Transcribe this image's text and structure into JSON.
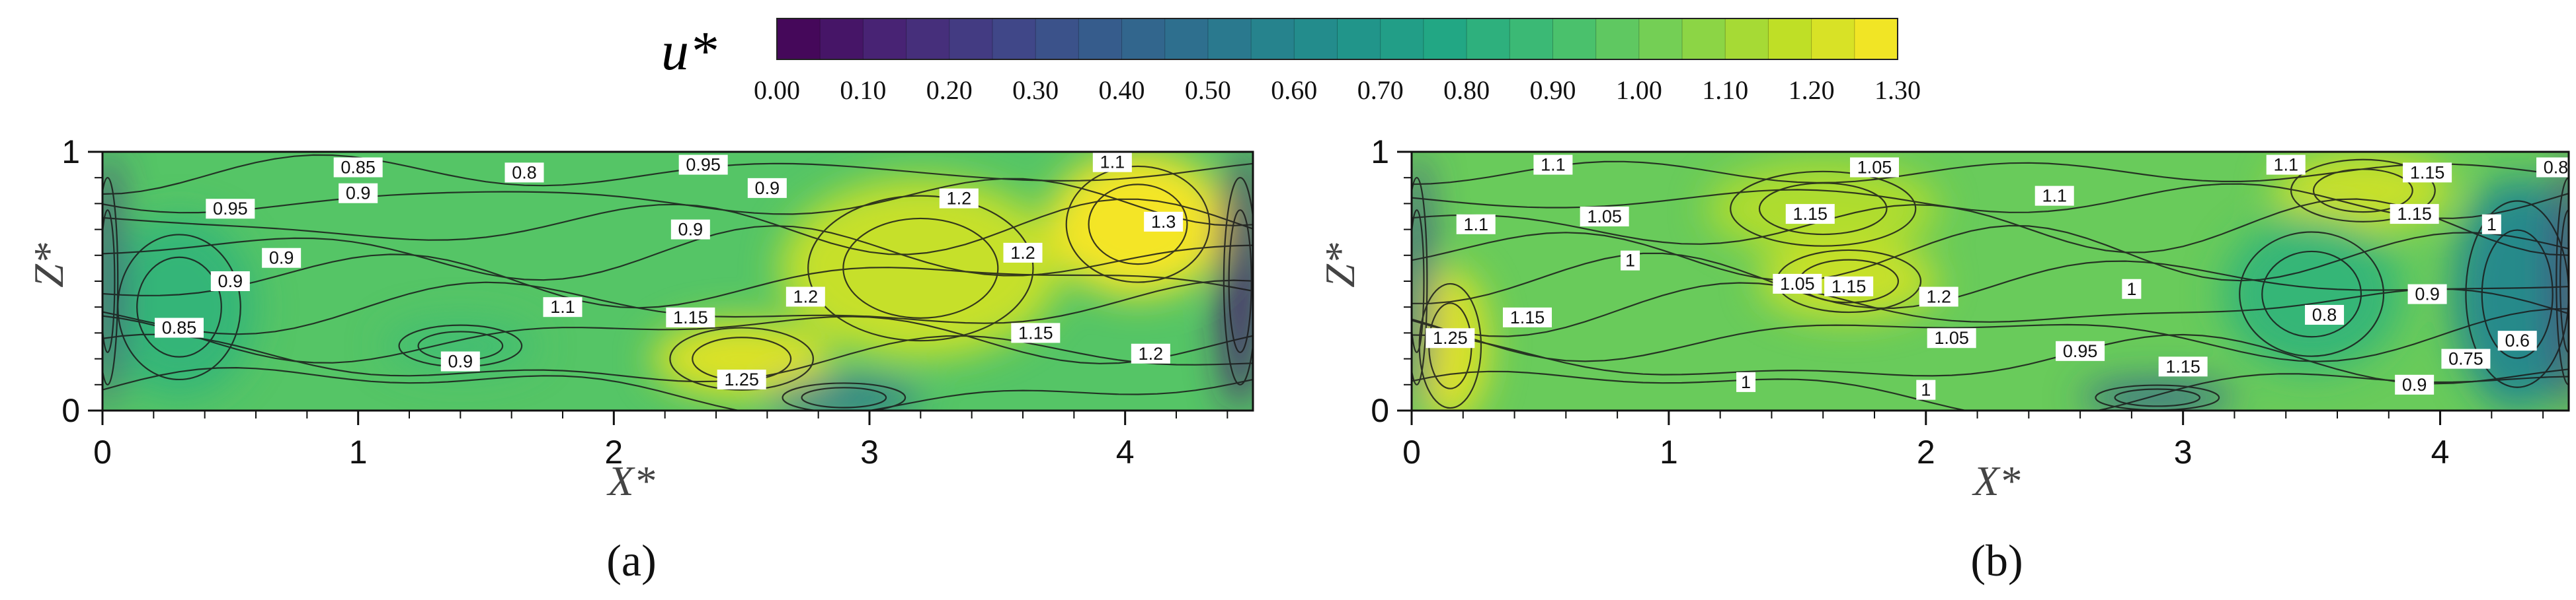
{
  "colorbar": {
    "label": "u*",
    "ticks": [
      "0.00",
      "0.10",
      "0.20",
      "0.30",
      "0.40",
      "0.50",
      "0.60",
      "0.70",
      "0.80",
      "0.90",
      "1.00",
      "1.10",
      "1.20",
      "1.30"
    ],
    "min": 0.0,
    "max": 1.3,
    "levels": 26,
    "colors": [
      "#440154",
      "#482475",
      "#414487",
      "#355f8d",
      "#2a788e",
      "#21918c",
      "#22a884",
      "#44bf70",
      "#7ad151",
      "#bddf26",
      "#fde725"
    ]
  },
  "chart_data": [
    {
      "type": "heatmap",
      "panel_label": "(a)",
      "xlabel": "X*",
      "ylabel": "Z*",
      "xlim": [
        0,
        4.5
      ],
      "ylim": [
        0,
        1
      ],
      "xticks": [
        "0",
        "1",
        "2",
        "3",
        "4"
      ],
      "yticks": [
        "0",
        "1"
      ],
      "base_value": 0.95,
      "blobs": [
        {
          "x": 4.05,
          "z": 0.72,
          "rx": 0.35,
          "rz": 0.28,
          "value": 1.3
        },
        {
          "x": 3.2,
          "z": 0.55,
          "rx": 0.55,
          "rz": 0.35,
          "value": 1.2
        },
        {
          "x": 2.5,
          "z": 0.2,
          "rx": 0.35,
          "rz": 0.15,
          "value": 1.25
        },
        {
          "x": 1.4,
          "z": 0.25,
          "rx": 0.3,
          "rz": 0.1,
          "value": 0.9
        },
        {
          "x": 0.3,
          "z": 0.4,
          "rx": 0.3,
          "rz": 0.35,
          "value": 0.85
        },
        {
          "x": 4.45,
          "z": 0.5,
          "rx": 0.08,
          "rz": 0.5,
          "value": 0.1
        },
        {
          "x": 0.02,
          "z": 0.5,
          "rx": 0.05,
          "rz": 0.5,
          "value": 0.2
        },
        {
          "x": 2.9,
          "z": 0.05,
          "rx": 0.3,
          "rz": 0.07,
          "value": 0.5
        }
      ],
      "contour_labels": [
        {
          "x": 1.0,
          "z": 0.94,
          "text": "0.85"
        },
        {
          "x": 1.65,
          "z": 0.92,
          "text": "0.8"
        },
        {
          "x": 2.35,
          "z": 0.95,
          "text": "0.95"
        },
        {
          "x": 2.6,
          "z": 0.86,
          "text": "0.9"
        },
        {
          "x": 1.0,
          "z": 0.84,
          "text": "0.9"
        },
        {
          "x": 0.5,
          "z": 0.78,
          "text": "0.95"
        },
        {
          "x": 2.3,
          "z": 0.7,
          "text": "0.9"
        },
        {
          "x": 0.7,
          "z": 0.59,
          "text": "0.9"
        },
        {
          "x": 0.5,
          "z": 0.5,
          "text": "0.9"
        },
        {
          "x": 0.3,
          "z": 0.32,
          "text": "0.85"
        },
        {
          "x": 1.8,
          "z": 0.4,
          "text": "1.1"
        },
        {
          "x": 3.95,
          "z": 0.96,
          "text": "1.1"
        },
        {
          "x": 3.35,
          "z": 0.82,
          "text": "1.2"
        },
        {
          "x": 4.15,
          "z": 0.73,
          "text": "1.3"
        },
        {
          "x": 3.6,
          "z": 0.61,
          "text": "1.2"
        },
        {
          "x": 2.75,
          "z": 0.44,
          "text": "1.2"
        },
        {
          "x": 2.3,
          "z": 0.36,
          "text": "1.15"
        },
        {
          "x": 3.65,
          "z": 0.3,
          "text": "1.15"
        },
        {
          "x": 1.4,
          "z": 0.19,
          "text": "0.9"
        },
        {
          "x": 2.5,
          "z": 0.12,
          "text": "1.25"
        },
        {
          "x": 4.1,
          "z": 0.22,
          "text": "1.2"
        }
      ]
    },
    {
      "type": "heatmap",
      "panel_label": "(b)",
      "xlabel": "X*",
      "ylabel": "Z*",
      "xlim": [
        0,
        4.5
      ],
      "ylim": [
        0,
        1
      ],
      "xticks": [
        "0",
        "1",
        "2",
        "3",
        "4"
      ],
      "yticks": [
        "0",
        "1"
      ],
      "base_value": 1.0,
      "blobs": [
        {
          "x": 1.6,
          "z": 0.78,
          "rx": 0.45,
          "rz": 0.18,
          "value": 1.15
        },
        {
          "x": 1.7,
          "z": 0.5,
          "rx": 0.35,
          "rz": 0.15,
          "value": 1.2
        },
        {
          "x": 3.7,
          "z": 0.85,
          "rx": 0.35,
          "rz": 0.15,
          "value": 1.2
        },
        {
          "x": 0.15,
          "z": 0.25,
          "rx": 0.15,
          "rz": 0.3,
          "value": 1.25
        },
        {
          "x": 3.5,
          "z": 0.45,
          "rx": 0.35,
          "rz": 0.3,
          "value": 0.85
        },
        {
          "x": 4.3,
          "z": 0.45,
          "rx": 0.25,
          "rz": 0.45,
          "value": 0.6
        },
        {
          "x": 4.5,
          "z": 0.5,
          "rx": 0.06,
          "rz": 0.5,
          "value": 0.2
        },
        {
          "x": 0.02,
          "z": 0.5,
          "rx": 0.05,
          "rz": 0.5,
          "value": 0.3
        },
        {
          "x": 2.9,
          "z": 0.05,
          "rx": 0.3,
          "rz": 0.06,
          "value": 0.4
        }
      ],
      "contour_labels": [
        {
          "x": 0.55,
          "z": 0.95,
          "text": "1.1"
        },
        {
          "x": 1.8,
          "z": 0.94,
          "text": "1.05"
        },
        {
          "x": 3.4,
          "z": 0.95,
          "text": "1.1"
        },
        {
          "x": 3.95,
          "z": 0.92,
          "text": "1.15"
        },
        {
          "x": 4.45,
          "z": 0.94,
          "text": "0.8"
        },
        {
          "x": 0.25,
          "z": 0.72,
          "text": "1.1"
        },
        {
          "x": 0.75,
          "z": 0.75,
          "text": "1.05"
        },
        {
          "x": 1.55,
          "z": 0.76,
          "text": "1.15"
        },
        {
          "x": 2.5,
          "z": 0.83,
          "text": "1.1"
        },
        {
          "x": 3.9,
          "z": 0.76,
          "text": "1.15"
        },
        {
          "x": 4.2,
          "z": 0.72,
          "text": "1"
        },
        {
          "x": 0.85,
          "z": 0.58,
          "text": "1"
        },
        {
          "x": 1.5,
          "z": 0.49,
          "text": "1.05"
        },
        {
          "x": 1.7,
          "z": 0.48,
          "text": "1.15"
        },
        {
          "x": 2.05,
          "z": 0.44,
          "text": "1.2"
        },
        {
          "x": 2.8,
          "z": 0.47,
          "text": "1"
        },
        {
          "x": 3.55,
          "z": 0.37,
          "text": "0.8"
        },
        {
          "x": 3.95,
          "z": 0.45,
          "text": "0.9"
        },
        {
          "x": 0.45,
          "z": 0.36,
          "text": "1.15"
        },
        {
          "x": 2.1,
          "z": 0.28,
          "text": "1.05"
        },
        {
          "x": 2.6,
          "z": 0.23,
          "text": "0.95"
        },
        {
          "x": 3.0,
          "z": 0.17,
          "text": "1.15"
        },
        {
          "x": 4.3,
          "z": 0.27,
          "text": "0.6"
        },
        {
          "x": 4.1,
          "z": 0.2,
          "text": "0.75"
        },
        {
          "x": 0.15,
          "z": 0.28,
          "text": "1.25"
        },
        {
          "x": 1.3,
          "z": 0.11,
          "text": "1"
        },
        {
          "x": 2.0,
          "z": 0.08,
          "text": "1"
        },
        {
          "x": 3.9,
          "z": 0.1,
          "text": "0.9"
        }
      ]
    }
  ]
}
